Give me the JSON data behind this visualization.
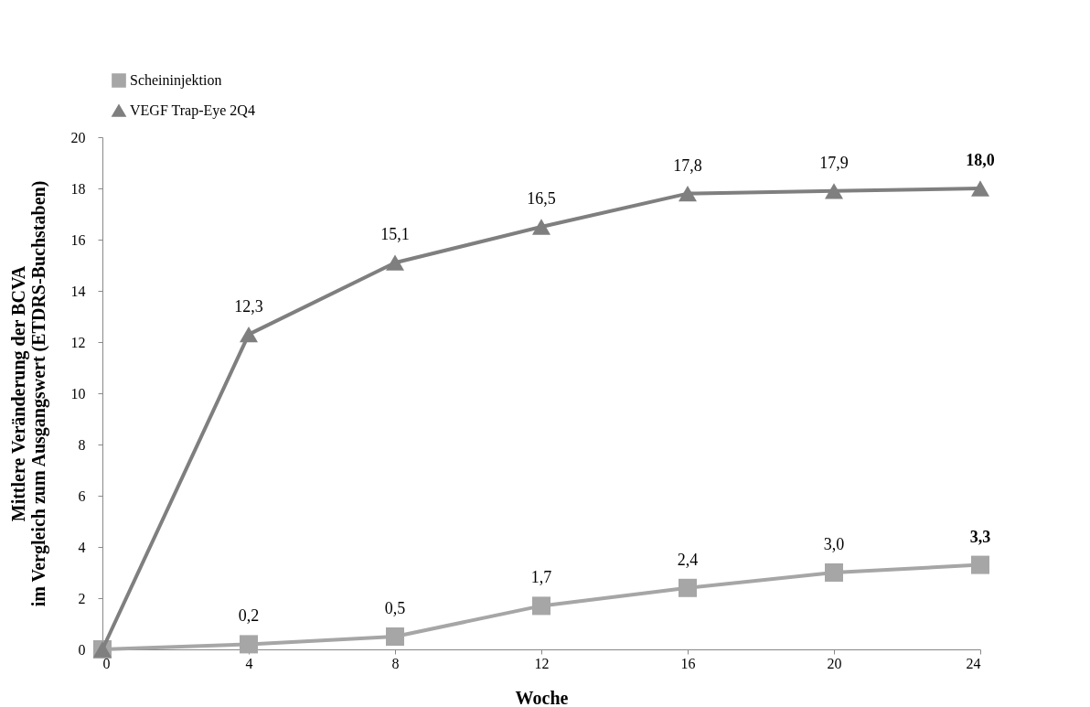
{
  "chart_data": {
    "type": "line",
    "xlabel": "Woche",
    "ylabel": "Mittlere Veränderung der BCVA\nim Vergleich zum Ausgangswert (ETDRS-Buchstaben)",
    "x": [
      0,
      4,
      8,
      12,
      16,
      20,
      24
    ],
    "series": [
      {
        "name": "Scheininjektion",
        "color": "#a6a6a6",
        "marker": "square",
        "values": [
          0,
          0.2,
          0.5,
          1.7,
          2.4,
          3.0,
          3.3
        ],
        "value_labels": [
          null,
          "0,2",
          "0,5",
          "1,7",
          "2,4",
          "3,0",
          "3,3"
        ]
      },
      {
        "name": "VEGF Trap-Eye 2Q4",
        "color": "#7f7f7f",
        "marker": "triangle",
        "values": [
          0,
          12.3,
          15.1,
          16.5,
          17.8,
          17.9,
          18.0
        ],
        "value_labels": [
          null,
          "12,3",
          "15,1",
          "16,5",
          "17,8",
          "17,9",
          "18,0"
        ]
      }
    ],
    "xlim": [
      0,
      24
    ],
    "xticks": [
      0,
      4,
      8,
      12,
      16,
      20,
      24
    ],
    "ylim": [
      0,
      20
    ],
    "yticks": [
      0,
      2,
      4,
      6,
      8,
      10,
      12,
      14,
      16,
      18,
      20
    ],
    "grid": false,
    "legend": "top left",
    "line_style": "solid"
  }
}
